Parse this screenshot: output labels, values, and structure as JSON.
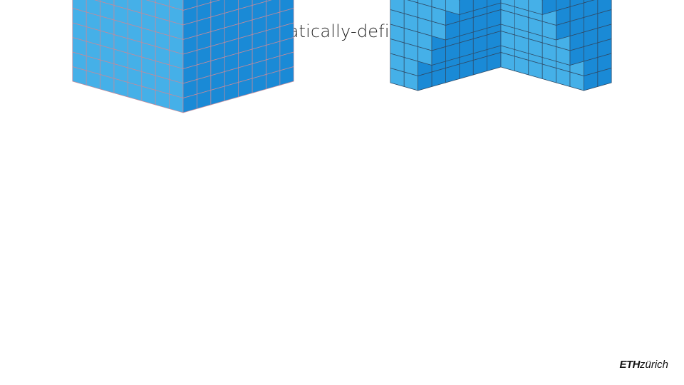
{
  "slide": {
    "title": "mathematically-defined filter"
  },
  "colors": {
    "top_face": "#b9e4f5",
    "left_face": "#45b0e8",
    "right_face": "#1a8ad6",
    "grid_line_solid": "#c48a9a",
    "grid_line_filtered": "#2f4a66",
    "background": "#ffffff"
  },
  "blocks": [
    {
      "name": "solid-block",
      "grid": {
        "x": 8,
        "y": 8,
        "z": 12
      }
    },
    {
      "name": "filtered-block",
      "grid": {
        "x": 8,
        "y": 8,
        "z": 12
      },
      "filter": "staircase-corner-cutout"
    }
  ],
  "logo": {
    "eth": "ETH",
    "zurich": "zürich"
  }
}
